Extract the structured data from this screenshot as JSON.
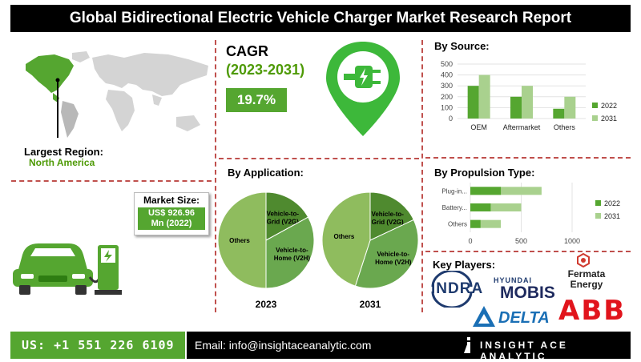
{
  "title": "Global Bidirectional Electric Vehicle Charger Market Research Report",
  "region": {
    "label": "Largest Region:",
    "value": "North America"
  },
  "cagr": {
    "label": "CAGR",
    "period": "(2023-2031)",
    "value": "19.7%"
  },
  "market_size": {
    "label": "Market Size:",
    "value_line1": "US$ 926.96",
    "value_line2": "Mn (2022)"
  },
  "colors": {
    "green_dark": "#55a630",
    "green_light": "#a9d18e",
    "pie_light": "#8fbc5e",
    "pie_mid": "#6aa84f",
    "pie_dark": "#4f8a2f",
    "divider": "#c0504d"
  },
  "chart_data": [
    {
      "type": "bar",
      "title": "By Source:",
      "categories": [
        "OEM",
        "Aftermarket",
        "Others"
      ],
      "series": [
        {
          "name": "2022",
          "values": [
            300,
            200,
            90
          ]
        },
        {
          "name": "2031",
          "values": [
            400,
            300,
            200
          ]
        }
      ],
      "yticks": [
        "0",
        "100",
        "200",
        "300",
        "400",
        "500"
      ],
      "ylim": [
        0,
        500
      ],
      "legend": "right"
    },
    {
      "type": "bar",
      "orientation": "horizontal",
      "title": "By Propulsion Type:",
      "categories": [
        "Plug-in...",
        "Battery...",
        "Others"
      ],
      "series": [
        {
          "name": "2022",
          "values": [
            300,
            200,
            100
          ]
        },
        {
          "name": "2031",
          "values": [
            700,
            500,
            300
          ]
        }
      ],
      "xticks": [
        "0",
        "500",
        "1000"
      ],
      "xlim": [
        0,
        1000
      ],
      "legend": "right"
    },
    {
      "type": "pie",
      "title": "By Application:",
      "pies": [
        {
          "label": "2023",
          "slices": [
            {
              "name": "Vehicle-to-Grid (V2G)",
              "line1": "Vehicle-to-",
              "line2": "Grid (V2G)",
              "value": 17
            },
            {
              "name": "Vehicle-to-Home (V2H)",
              "line1": "Vehicle-to-",
              "line2": "Home (V2H)",
              "value": 33
            },
            {
              "name": "Others",
              "line1": "Others",
              "line2": "",
              "value": 50
            }
          ]
        },
        {
          "label": "2031",
          "slices": [
            {
              "name": "Vehicle-to-Grid (V2G)",
              "line1": "Vehicle-to-",
              "line2": "Grid (V2G)",
              "value": 18
            },
            {
              "name": "Vehicle-to-Home (V2H)",
              "line1": "Vehicle-to-",
              "line2": "Home (V2H)",
              "value": 37
            },
            {
              "name": "Others",
              "line1": "Others",
              "line2": "",
              "value": 45
            }
          ]
        }
      ]
    }
  ],
  "key_players": {
    "label": "Key Players:",
    "indra": "INDRA",
    "hyundai_small": "HYUNDAI",
    "mobis": "MOBIS",
    "fermata_line1": "Fermata",
    "fermata_line2": "Energy",
    "delta": "DELTA",
    "abb": "ABB"
  },
  "footer": {
    "phone": "US: +1 551 226 6109",
    "email": "Email: info@insightaceanalytic.com",
    "brand": "INSIGHT ACE ANALYTIC"
  }
}
